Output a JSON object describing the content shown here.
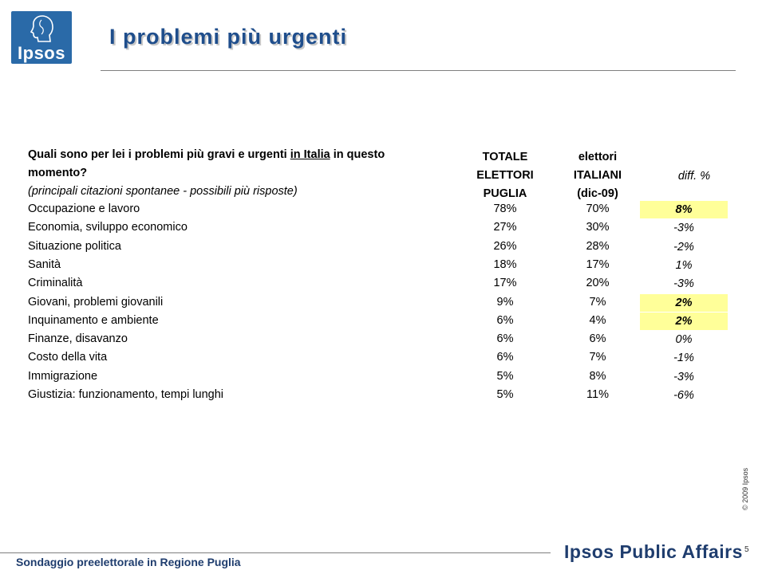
{
  "brand": {
    "logo_text": "Ipsos",
    "name": "Ipsos Public Affairs",
    "copyright": "© 2009 Ipsos"
  },
  "header": {
    "title": "I problemi più urgenti"
  },
  "table": {
    "question_pre": "Quali sono per lei i problemi più gravi e urgenti ",
    "question_underlined": "in Italia",
    "question_post": " in questo",
    "question_line2": "momento?",
    "question_note": "(principali citazioni spontanee - possibili più risposte)",
    "col1": [
      "TOTALE",
      "ELETTORI",
      "PUGLIA"
    ],
    "col2": [
      "elettori",
      "ITALIANI",
      "(dic-09)"
    ],
    "col3": "diff. %",
    "rows": [
      {
        "label": "Occupazione e lavoro",
        "v1": "78%",
        "v2": "70%",
        "diff": "8%",
        "highlight": true
      },
      {
        "label": "Economia, sviluppo economico",
        "v1": "27%",
        "v2": "30%",
        "diff": "-3%",
        "highlight": false
      },
      {
        "label": "Situazione politica",
        "v1": "26%",
        "v2": "28%",
        "diff": "-2%",
        "highlight": false
      },
      {
        "label": "Sanità",
        "v1": "18%",
        "v2": "17%",
        "diff": "1%",
        "highlight": false
      },
      {
        "label": "Criminalità",
        "v1": "17%",
        "v2": "20%",
        "diff": "-3%",
        "highlight": false
      },
      {
        "label": "Giovani, problemi giovanili",
        "v1": "9%",
        "v2": "7%",
        "diff": "2%",
        "highlight": true
      },
      {
        "label": "Inquinamento e ambiente",
        "v1": "6%",
        "v2": "4%",
        "diff": "2%",
        "highlight": true
      },
      {
        "label": "Finanze, disavanzo",
        "v1": "6%",
        "v2": "6%",
        "diff": "0%",
        "highlight": false
      },
      {
        "label": "Costo della vita",
        "v1": "6%",
        "v2": "7%",
        "diff": "-1%",
        "highlight": false
      },
      {
        "label": "Immigrazione",
        "v1": "5%",
        "v2": "8%",
        "diff": "-3%",
        "highlight": false
      },
      {
        "label": "Giustizia: funzionamento, tempi lunghi",
        "v1": "5%",
        "v2": "11%",
        "diff": "-6%",
        "highlight": false
      }
    ]
  },
  "footer": {
    "survey": "Sondaggio preelettorale in Regione Puglia",
    "page_number": "5"
  },
  "colors": {
    "title": "#1f4e8c",
    "highlight": "#ffff99",
    "logo_bg": "#2a6aa8"
  }
}
